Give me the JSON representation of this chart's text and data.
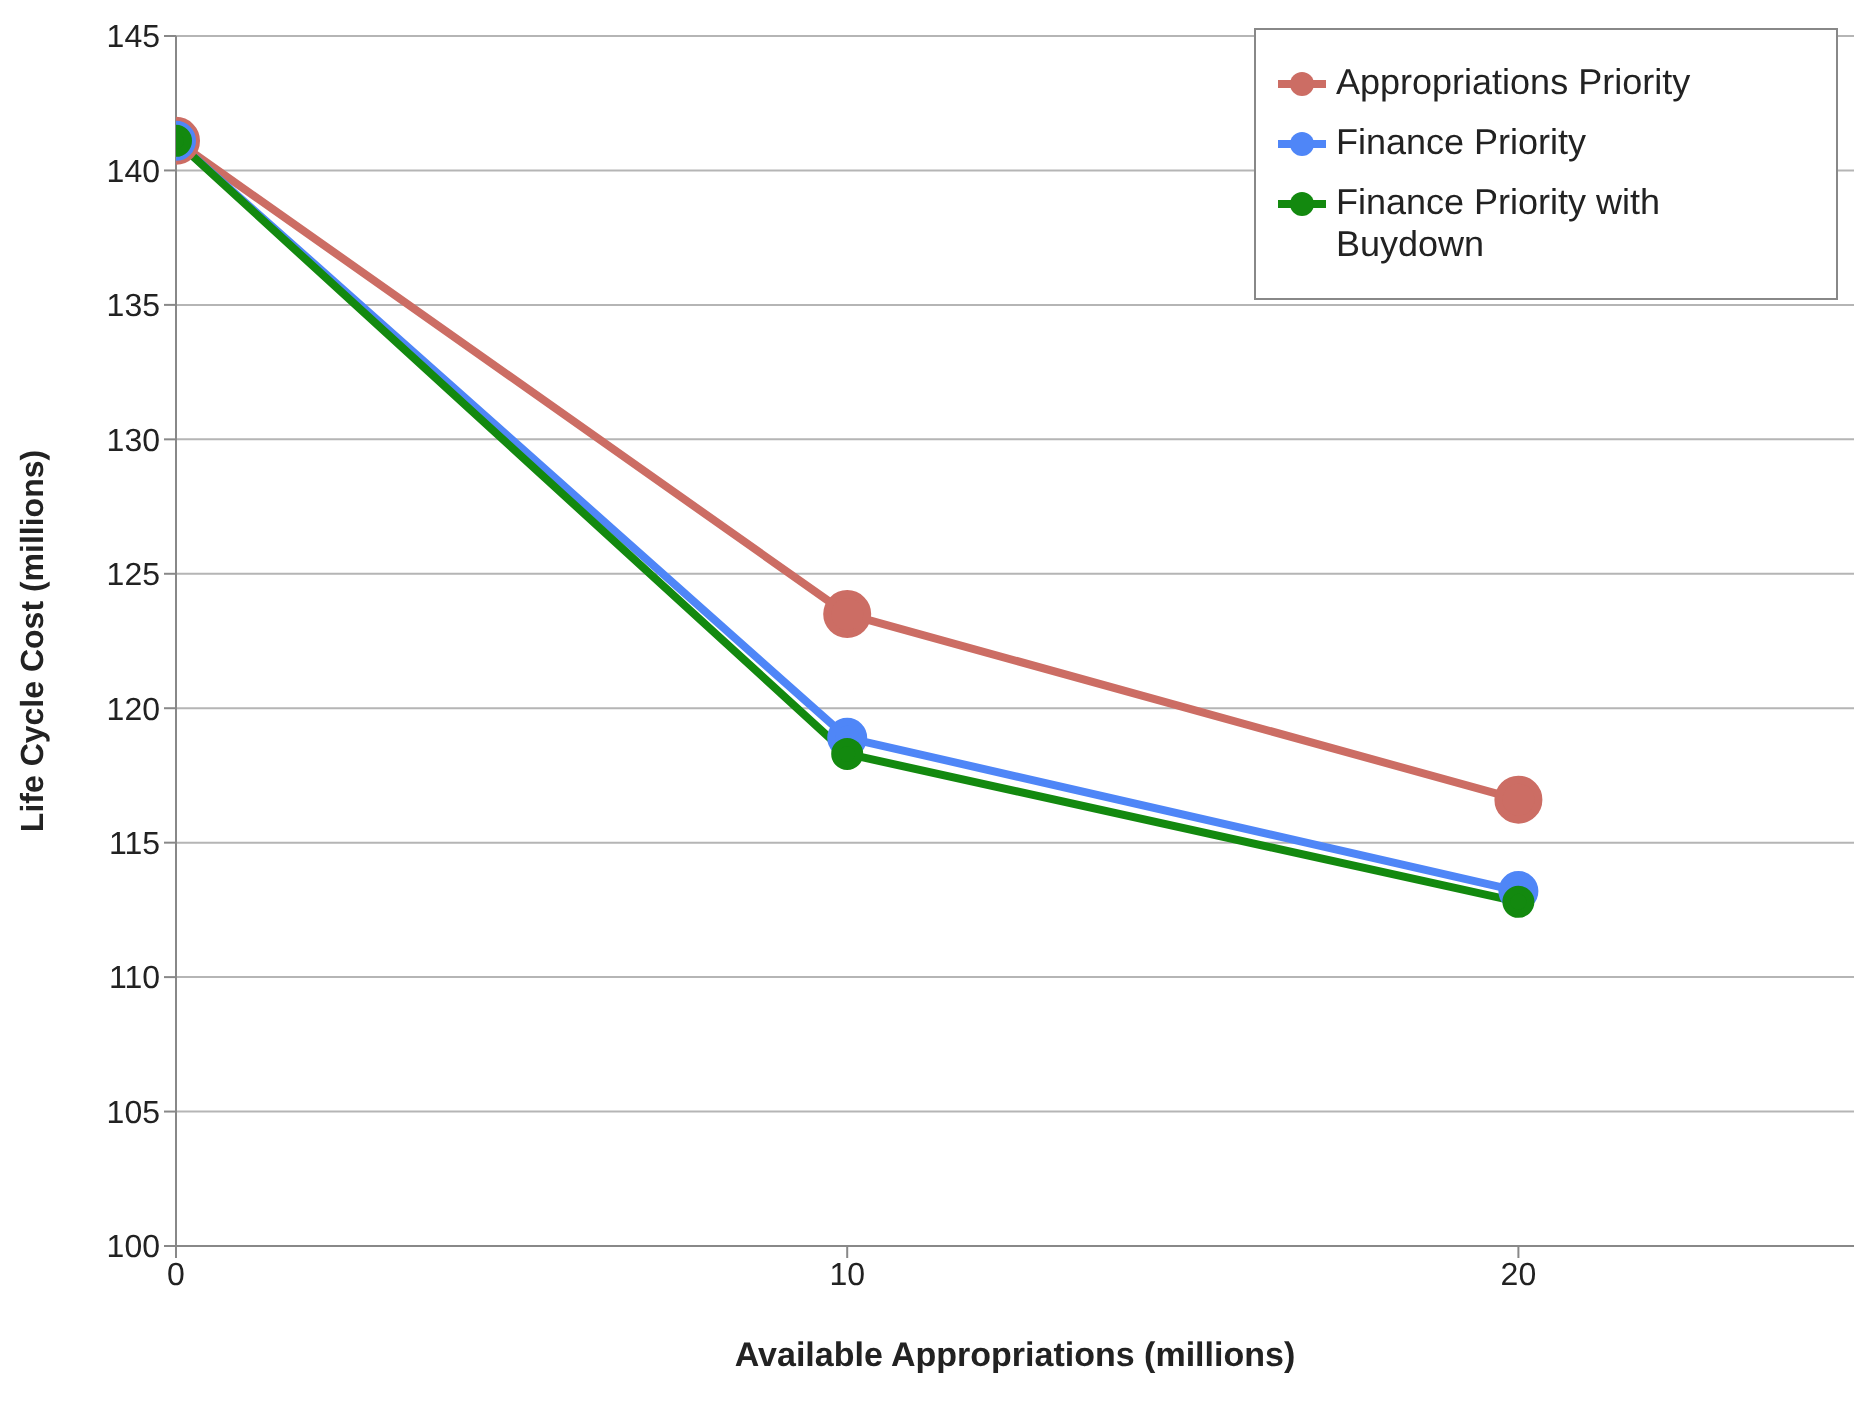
{
  "chart_data": {
    "type": "line",
    "xlabel": "Available Appropriations (millions)",
    "ylabel": "Life Cycle Cost (millions)",
    "x": [
      0,
      10,
      20
    ],
    "series": [
      {
        "name": "Appropriations Priority",
        "color": "#cc6d64",
        "values": [
          141.1,
          123.5,
          116.6
        ]
      },
      {
        "name": "Finance Priority",
        "color": "#4f86f7",
        "values": [
          141.1,
          118.9,
          113.2
        ]
      },
      {
        "name": "Finance Priority with Buydown",
        "color": "#13890f",
        "values": [
          141.1,
          118.3,
          112.8
        ]
      }
    ],
    "xlim": [
      0,
      25
    ],
    "xticks": [
      0,
      10,
      20
    ],
    "ylim": [
      100,
      145
    ],
    "yticks": [
      100,
      105,
      110,
      115,
      120,
      125,
      130,
      135,
      140,
      145
    ],
    "grid": "y",
    "legend": "top right",
    "marker": "circle",
    "line_style": "solid"
  }
}
